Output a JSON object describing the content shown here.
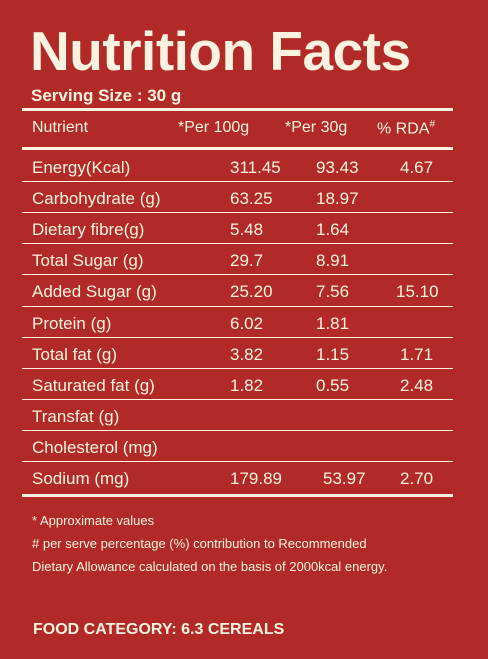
{
  "title": "Nutrition Facts",
  "serving": "Serving Size : 30 g",
  "header": {
    "nutrient": "Nutrient",
    "per100": "*Per 100g",
    "per30": "*Per 30g",
    "rda": "% RDA",
    "rda_sup": "#"
  },
  "rows": [
    {
      "name": "Energy(Kcal)",
      "per100": "311.45",
      "per30": "93.43",
      "rda": "4.67"
    },
    {
      "name": "Carbohydrate (g)",
      "per100": "63.25",
      "per30": "18.97",
      "rda": ""
    },
    {
      "name": "Dietary fibre(g)",
      "per100": "5.48",
      "per30": "1.64",
      "rda": ""
    },
    {
      "name": "Total Sugar (g)",
      "per100": "29.7",
      "per30": "8.91",
      "rda": ""
    },
    {
      "name": "Added Sugar (g)",
      "per100": "25.20",
      "per30": "7.56",
      "rda": "15.10"
    },
    {
      "name": "Protein (g)",
      "per100": "6.02",
      "per30": "1.81",
      "rda": ""
    },
    {
      "name": "Total fat (g)",
      "per100": "3.82",
      "per30": "1.15",
      "rda": "1.71"
    },
    {
      "name": "Saturated fat (g)",
      "per100": "1.82",
      "per30": "0.55",
      "rda": "2.48"
    },
    {
      "name": "Transfat (g)",
      "per100": "",
      "per30": "",
      "rda": ""
    },
    {
      "name": "Cholesterol (mg)",
      "per100": "",
      "per30": "",
      "rda": ""
    },
    {
      "name": "Sodium (mg)",
      "per100": "179.89",
      "per30": "53.97",
      "rda": "2.70"
    }
  ],
  "notes": {
    "line1": "* Approximate values",
    "line2": "# per serve percentage (%) contribution to Recommended",
    "line3": "Dietary Allowance calculated on the basis of 2000kcal energy."
  },
  "category": "FOOD CATEGORY: 6.3 CEREALS"
}
